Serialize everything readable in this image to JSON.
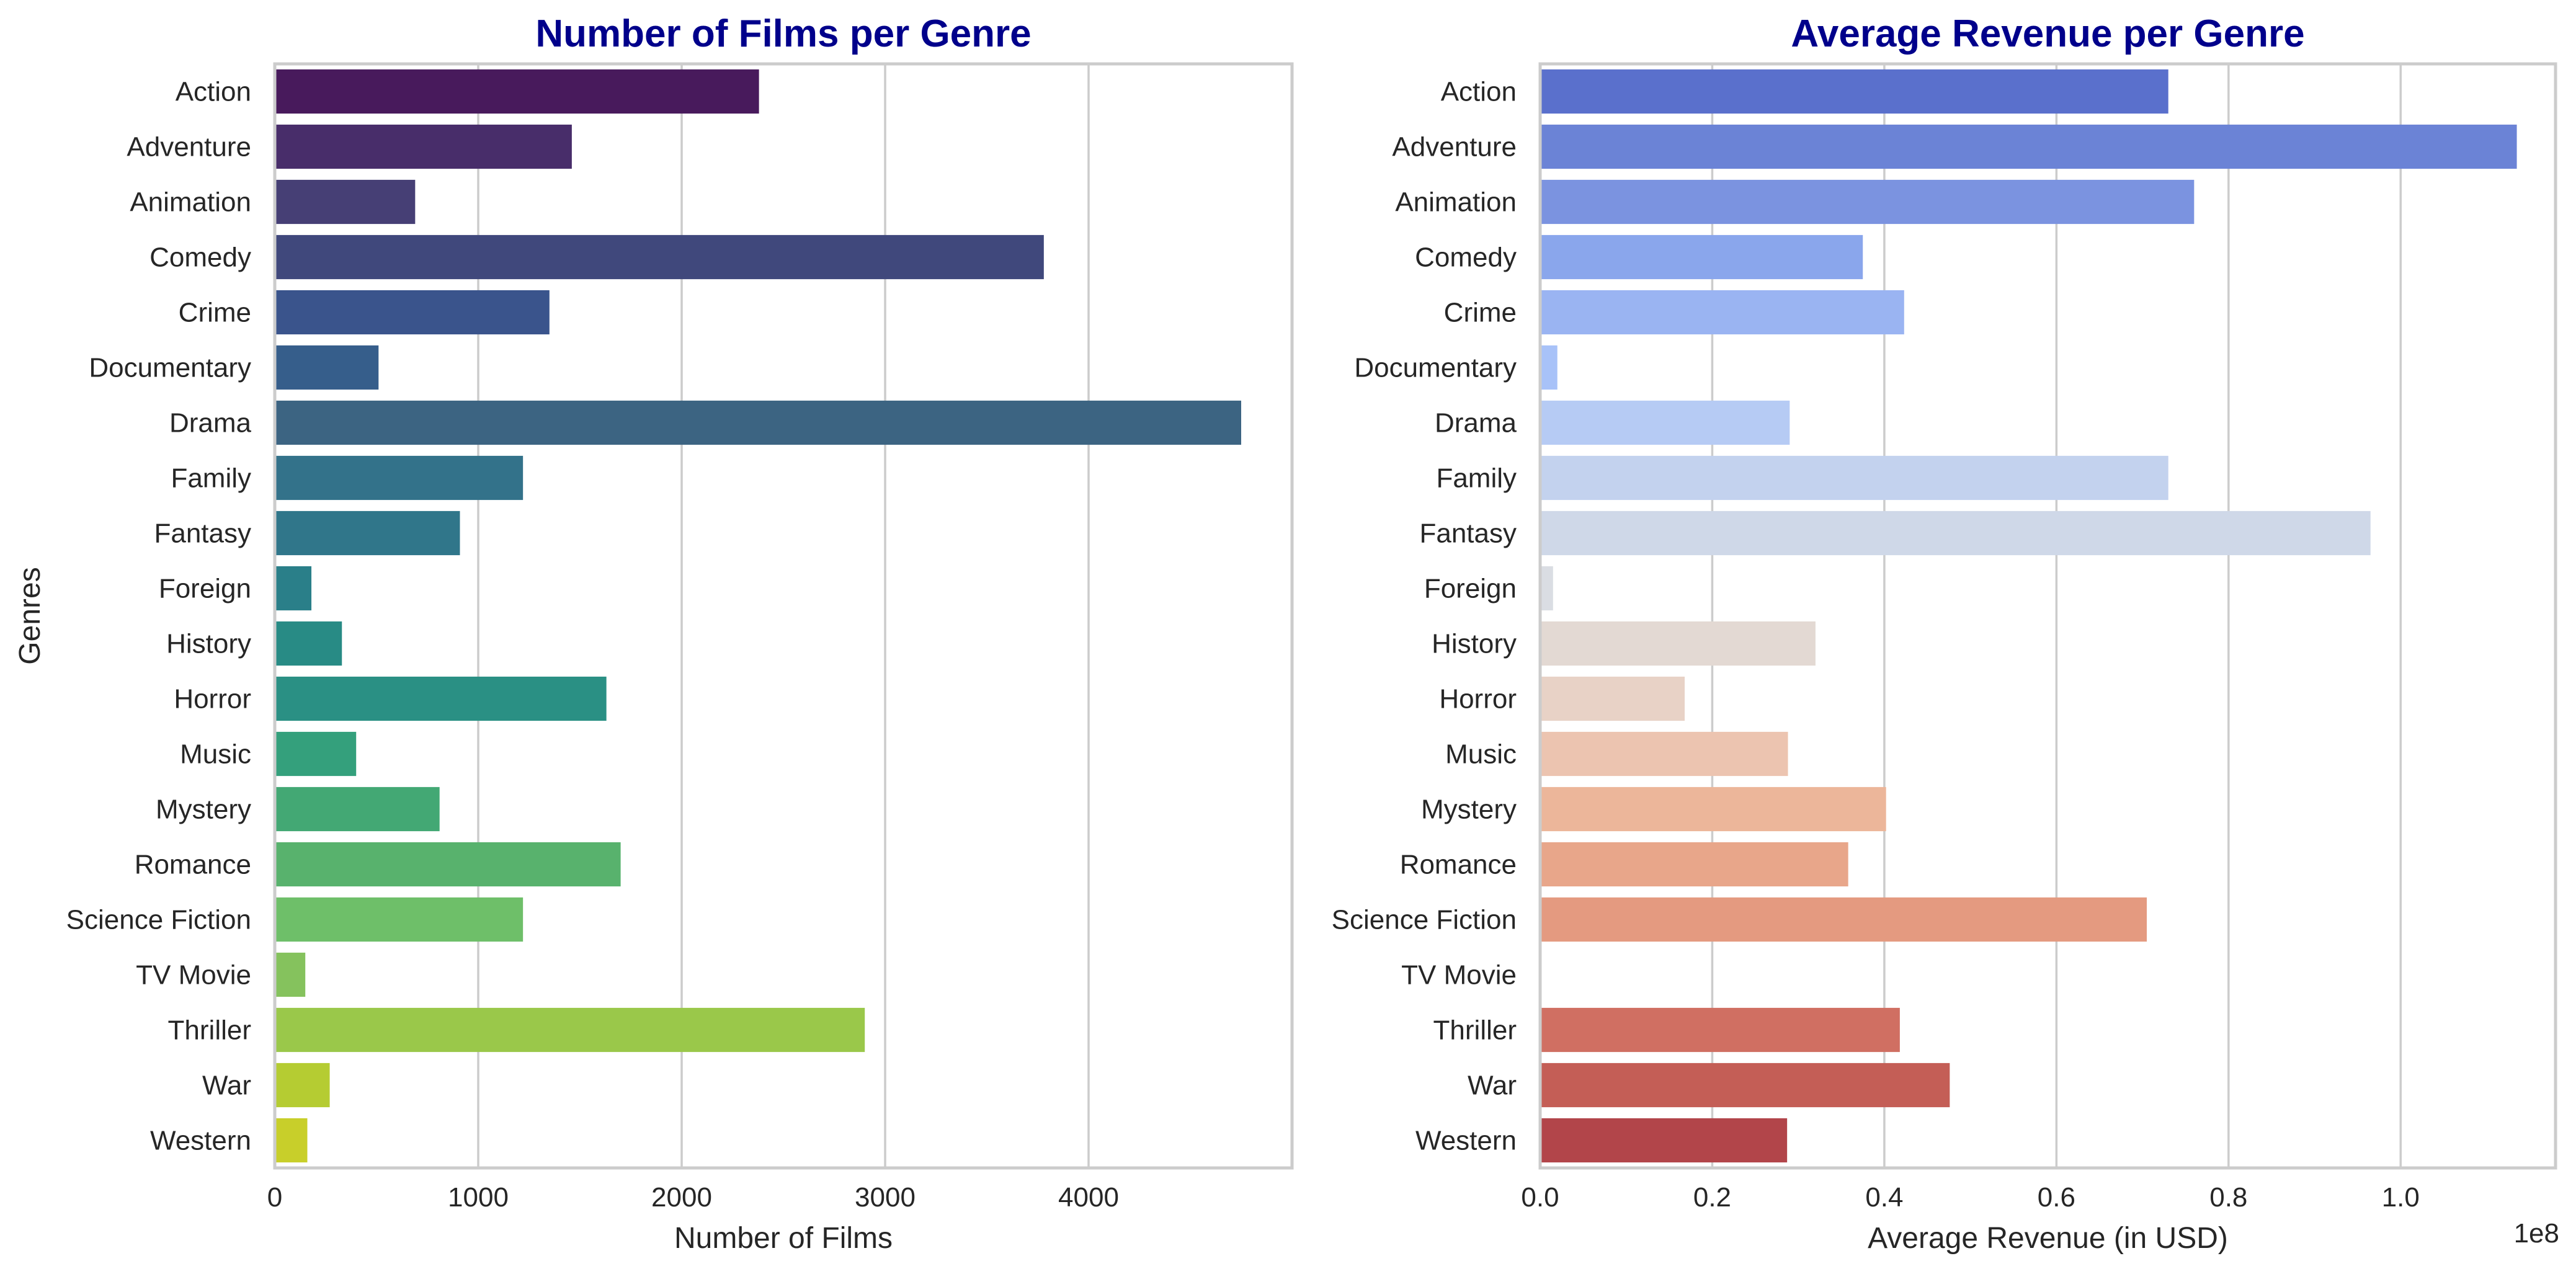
{
  "chart_data": [
    {
      "type": "bar",
      "orientation": "horizontal",
      "title": "Number of Films per Genre",
      "xlabel": "Number of Films",
      "ylabel": "Genres",
      "xlim": [
        0,
        5000
      ],
      "xticks": [
        "0",
        "1000",
        "2000",
        "3000",
        "4000"
      ],
      "grid": true,
      "categories": [
        "Action",
        "Adventure",
        "Animation",
        "Comedy",
        "Crime",
        "Documentary",
        "Drama",
        "Family",
        "Fantasy",
        "Foreign",
        "History",
        "Horror",
        "Music",
        "Mystery",
        "Romance",
        "Science Fiction",
        "TV Movie",
        "Thriller",
        "War",
        "Western"
      ],
      "values": [
        2380,
        1460,
        690,
        3780,
        1350,
        510,
        4750,
        1220,
        910,
        180,
        330,
        1630,
        400,
        810,
        1700,
        1220,
        150,
        2900,
        270,
        160
      ],
      "colors": [
        "#481a5c",
        "#482d6a",
        "#463f75",
        "#40487c",
        "#3a548c",
        "#365e8b",
        "#3c6482",
        "#33728a",
        "#30768a",
        "#2a7f89",
        "#288b85",
        "#2a9084",
        "#34a07c",
        "#43a874",
        "#58b26d",
        "#6ebf69",
        "#85c25d",
        "#9ac84a",
        "#b5cc32",
        "#c8cf2a"
      ]
    },
    {
      "type": "bar",
      "orientation": "horizontal",
      "title": "Average Revenue per Genre",
      "xlabel": "Average Revenue (in USD)",
      "ylabel": "",
      "axis_multiplier": "1e8",
      "xlim": [
        0,
        1.18
      ],
      "xticks": [
        "0.0",
        "0.2",
        "0.4",
        "0.6",
        "0.8",
        "1.0"
      ],
      "grid": true,
      "categories": [
        "Action",
        "Adventure",
        "Animation",
        "Comedy",
        "Crime",
        "Documentary",
        "Drama",
        "Family",
        "Fantasy",
        "Foreign",
        "History",
        "Horror",
        "Music",
        "Mystery",
        "Romance",
        "Science Fiction",
        "TV Movie",
        "Thriller",
        "War",
        "Western"
      ],
      "values": [
        0.73,
        1.135,
        0.76,
        0.375,
        0.423,
        0.02,
        0.29,
        0.73,
        0.965,
        0.015,
        0.32,
        0.168,
        0.288,
        0.402,
        0.358,
        0.705,
        0.0,
        0.418,
        0.476,
        0.287
      ],
      "colors": [
        "#5a70cc",
        "#6b83d6",
        "#7b93e0",
        "#8aa6ec",
        "#9ab4f2",
        "#a8c2f8",
        "#b6cbf4",
        "#c3d2ee",
        "#cfd8e8",
        "#dadde3",
        "#e3d9d3",
        "#e8d2c6",
        "#ecc4b0",
        "#ecb69a",
        "#e8a68a",
        "#e49a80",
        "#d8806e",
        "#d06f62",
        "#c45e56",
        "#b2454a"
      ]
    }
  ]
}
